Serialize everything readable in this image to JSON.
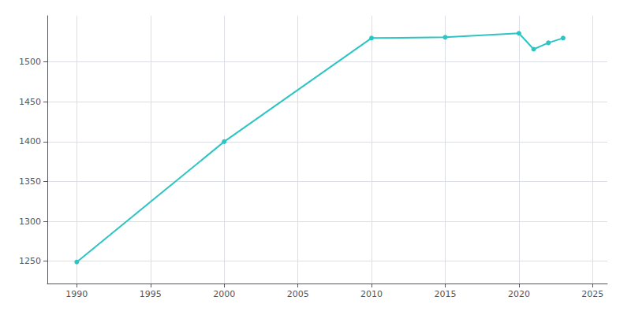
{
  "chart_data": {
    "type": "line",
    "x": [
      1990,
      2000,
      2010,
      2015,
      2020,
      2021,
      2022,
      2023
    ],
    "values": [
      1249,
      1400,
      1530,
      1531,
      1536,
      1516,
      1524,
      1530
    ],
    "color": "#2EC4C4",
    "marker": "circle",
    "xlim": [
      1988,
      2026
    ],
    "ylim": [
      1222,
      1558
    ],
    "xticks": [
      1990,
      1995,
      2000,
      2005,
      2010,
      2015,
      2020,
      2025
    ],
    "yticks": [
      1250,
      1300,
      1350,
      1400,
      1450,
      1500
    ],
    "grid": true
  }
}
